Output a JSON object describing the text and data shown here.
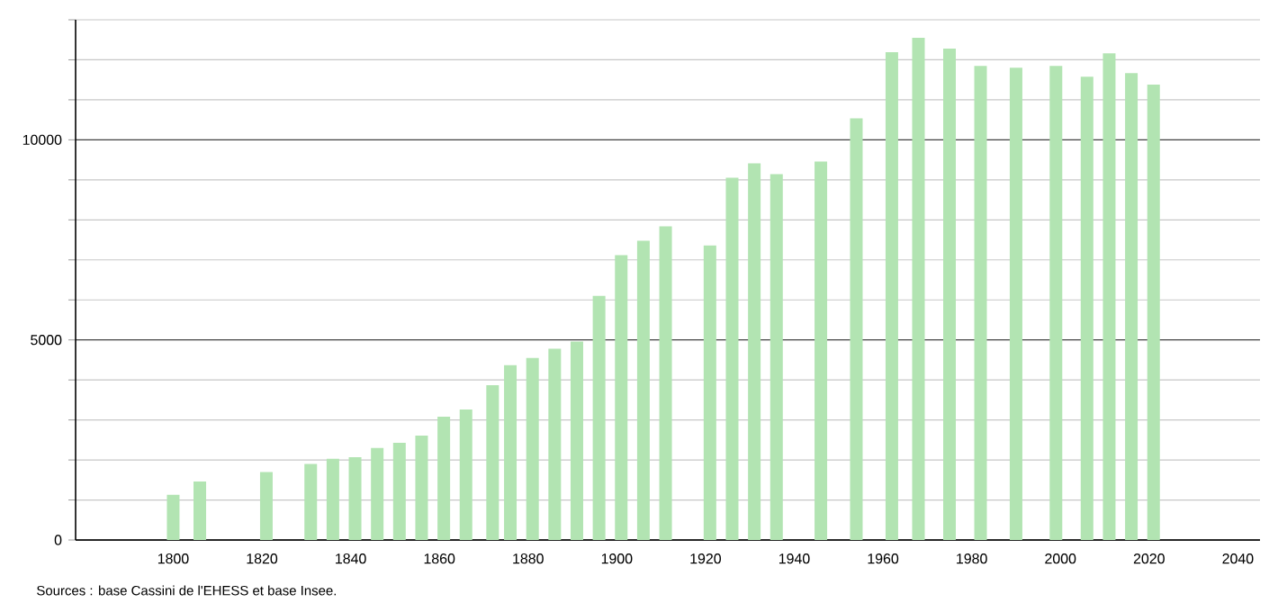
{
  "chart_data": {
    "type": "bar",
    "x": [
      1800,
      1806,
      1821,
      1831,
      1836,
      1841,
      1846,
      1851,
      1856,
      1861,
      1866,
      1872,
      1876,
      1881,
      1886,
      1891,
      1896,
      1901,
      1906,
      1911,
      1921,
      1926,
      1931,
      1936,
      1946,
      1954,
      1962,
      1968,
      1975,
      1982,
      1990,
      1999,
      2006,
      2011,
      2016,
      2021
    ],
    "values": [
      1130,
      1460,
      1700,
      1900,
      2030,
      2070,
      2300,
      2430,
      2610,
      3080,
      3260,
      3870,
      4370,
      4550,
      4780,
      4960,
      6100,
      7120,
      7480,
      7840,
      7360,
      9050,
      9410,
      9140,
      9460,
      10540,
      12190,
      12550,
      12280,
      11850,
      11800,
      11850,
      11580,
      12160,
      11670,
      11380
    ],
    "color": "#b2e4b2",
    "xlim": [
      1778,
      2045
    ],
    "xticks": [
      1800,
      1820,
      1840,
      1860,
      1880,
      1900,
      1920,
      1940,
      1960,
      1980,
      2000,
      2020,
      2040
    ],
    "ylim": [
      0,
      13000
    ],
    "yticks": [
      0,
      {
        "value": 1000,
        "label": null
      },
      {
        "value": 2000,
        "label": null
      },
      {
        "value": 3000,
        "label": null
      },
      {
        "value": 4000,
        "label": null
      },
      5000,
      {
        "value": 6000,
        "label": null
      },
      {
        "value": 7000,
        "label": null
      },
      {
        "value": 8000,
        "label": null
      },
      {
        "value": 9000,
        "label": null
      },
      10000,
      {
        "value": 11000,
        "label": null
      },
      {
        "value": 12000,
        "label": null
      },
      {
        "value": 13000,
        "label": null
      }
    ],
    "grid": "y",
    "annotations": [
      "Sources : base Cassini de l'EHESS et base Insee."
    ]
  }
}
